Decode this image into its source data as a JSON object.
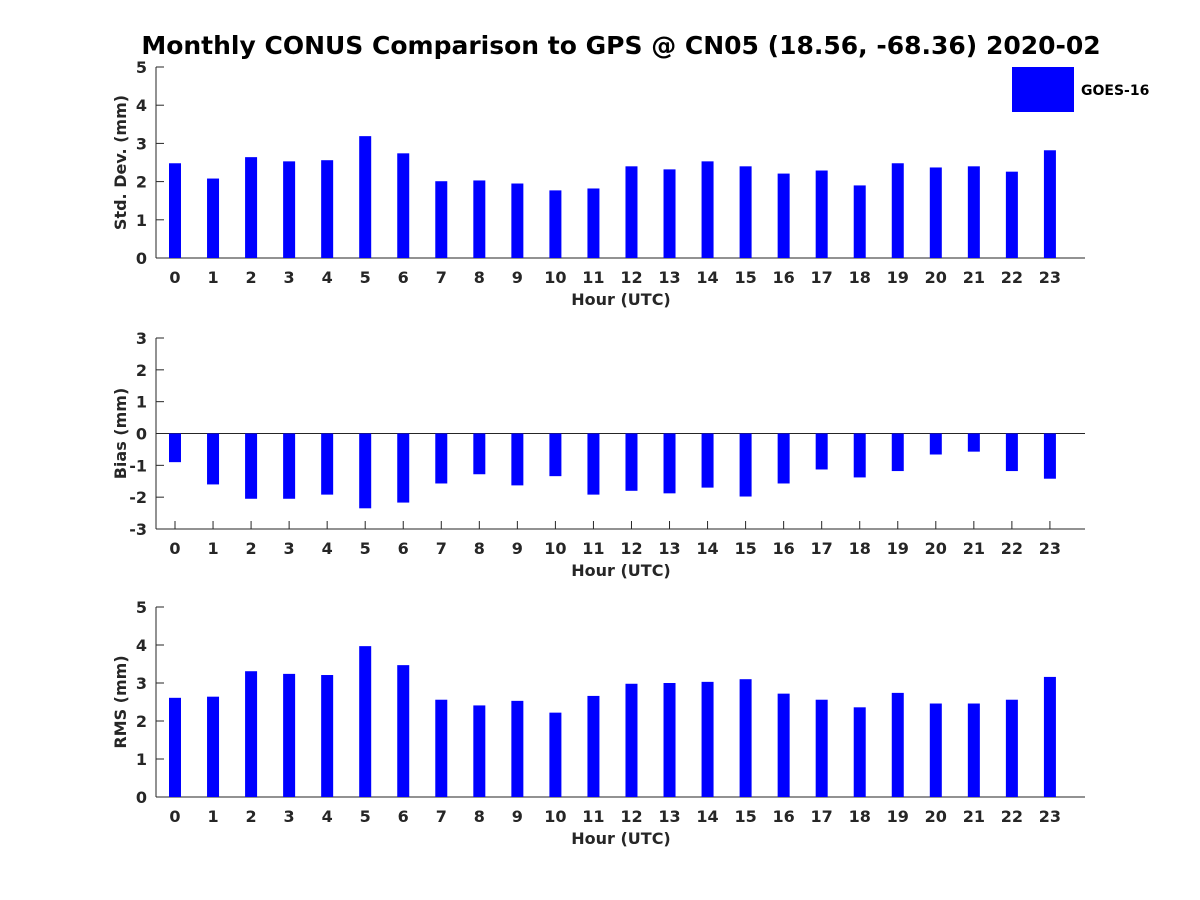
{
  "chart_data": {
    "type": "bar",
    "title": "Monthly CONUS Comparison to GPS @ CN05 (18.56, -68.36) 2020-02",
    "legend": {
      "label": "GOES-16",
      "color": "#0000ff",
      "placement": "top-right"
    },
    "categories": [
      "0",
      "1",
      "2",
      "3",
      "4",
      "5",
      "6",
      "7",
      "8",
      "9",
      "10",
      "11",
      "12",
      "13",
      "14",
      "15",
      "16",
      "17",
      "18",
      "19",
      "20",
      "21",
      "22",
      "23"
    ],
    "panels": [
      {
        "name": "std-dev",
        "ylabel": "Std. Dev. (mm)",
        "xlabel": "Hour (UTC)",
        "ylim": [
          0,
          5
        ],
        "yticks": [
          "0",
          "1",
          "2",
          "3",
          "4",
          "5"
        ],
        "series": [
          {
            "name": "GOES-16",
            "values": [
              2.48,
              2.08,
              2.64,
              2.53,
              2.56,
              3.19,
              2.74,
              2.01,
              2.03,
              1.95,
              1.77,
              1.82,
              2.4,
              2.32,
              2.53,
              2.4,
              2.21,
              2.29,
              1.9,
              2.48,
              2.37,
              2.4,
              2.26,
              2.82
            ]
          }
        ]
      },
      {
        "name": "bias",
        "ylabel": "Bias (mm)",
        "xlabel": "Hour (UTC)",
        "ylim": [
          -3,
          3
        ],
        "yticks": [
          "-3",
          "-2",
          "-1",
          "0",
          "1",
          "2",
          "3"
        ],
        "zero_line": true,
        "series": [
          {
            "name": "GOES-16",
            "values": [
              -0.9,
              -1.6,
              -2.05,
              -2.05,
              -1.92,
              -2.35,
              -2.17,
              -1.57,
              -1.28,
              -1.63,
              -1.34,
              -1.92,
              -1.8,
              -1.88,
              -1.7,
              -1.98,
              -1.57,
              -1.13,
              -1.38,
              -1.18,
              -0.66,
              -0.57,
              -1.18,
              -1.42
            ]
          }
        ]
      },
      {
        "name": "rms",
        "ylabel": "RMS (mm)",
        "xlabel": "Hour (UTC)",
        "ylim": [
          0,
          5
        ],
        "yticks": [
          "0",
          "1",
          "2",
          "3",
          "4",
          "5"
        ],
        "series": [
          {
            "name": "GOES-16",
            "values": [
              2.61,
              2.64,
              3.31,
              3.24,
              3.21,
              3.97,
              3.47,
              2.56,
              2.41,
              2.53,
              2.22,
              2.66,
              2.98,
              3.0,
              3.03,
              3.1,
              2.72,
              2.56,
              2.36,
              2.74,
              2.46,
              2.46,
              2.56,
              3.16
            ]
          }
        ]
      }
    ]
  }
}
